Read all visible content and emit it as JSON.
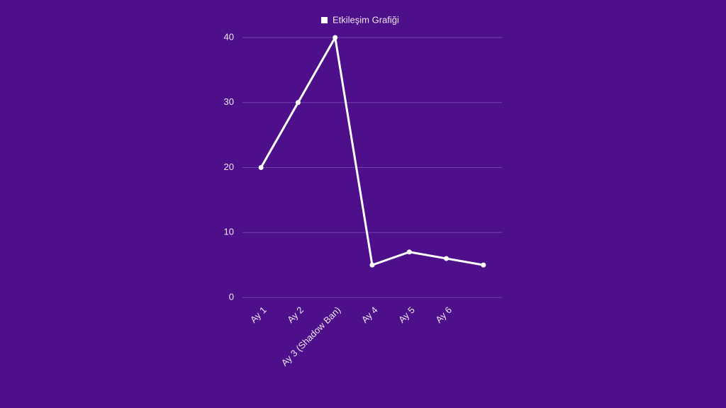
{
  "chart_data": {
    "type": "line",
    "categories": [
      "Ay 1",
      "Ay 2",
      "Ay 3 (Shadow Ban)",
      "Ay 4",
      "Ay 5",
      "Ay 6",
      null
    ],
    "series": [
      {
        "name": "Etkileşim Grafiği",
        "color": "#ffffff",
        "values": [
          20,
          30,
          40,
          5,
          7,
          6,
          5
        ]
      }
    ],
    "ylim": [
      0,
      40
    ],
    "yticks": [
      0,
      10,
      20,
      30,
      40
    ],
    "grid": true,
    "legend": "top"
  }
}
